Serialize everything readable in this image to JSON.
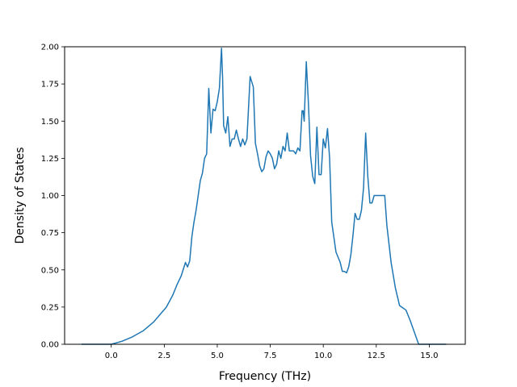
{
  "chart_data": {
    "type": "line",
    "title": "",
    "xlabel": "Frequency (THz)",
    "ylabel": "Density of States",
    "xlim": [
      -2.2,
      16.7
    ],
    "ylim": [
      0.0,
      2.0
    ],
    "xticks": [
      0.0,
      2.5,
      5.0,
      7.5,
      10.0,
      12.5,
      15.0
    ],
    "yticks": [
      0.0,
      0.25,
      0.5,
      0.75,
      1.0,
      1.25,
      1.5,
      1.75,
      2.0
    ],
    "xtick_labels": [
      "0.0",
      "2.5",
      "5.0",
      "7.5",
      "10.0",
      "12.5",
      "15.0"
    ],
    "ytick_labels": [
      "0.00",
      "0.25",
      "0.50",
      "0.75",
      "1.00",
      "1.25",
      "1.50",
      "1.75",
      "2.00"
    ],
    "grid": false,
    "series": [
      {
        "name": "",
        "color": "#1f77b4",
        "x": [
          -1.4,
          0.0,
          0.5,
          1.0,
          1.5,
          2.0,
          2.3,
          2.6,
          2.9,
          3.1,
          3.3,
          3.5,
          3.6,
          3.7,
          3.8,
          3.9,
          4.0,
          4.2,
          4.3,
          4.4,
          4.5,
          4.6,
          4.7,
          4.8,
          4.9,
          5.0,
          5.1,
          5.2,
          5.25,
          5.3,
          5.4,
          5.5,
          5.6,
          5.7,
          5.8,
          5.9,
          6.0,
          6.1,
          6.2,
          6.3,
          6.4,
          6.55,
          6.7,
          6.8,
          6.9,
          7.0,
          7.1,
          7.2,
          7.3,
          7.4,
          7.5,
          7.6,
          7.7,
          7.8,
          7.9,
          8.0,
          8.1,
          8.2,
          8.3,
          8.4,
          8.5,
          8.6,
          8.7,
          8.8,
          8.9,
          9.0,
          9.05,
          9.1,
          9.2,
          9.3,
          9.4,
          9.5,
          9.6,
          9.7,
          9.8,
          9.9,
          10.0,
          10.1,
          10.2,
          10.3,
          10.4,
          10.6,
          10.8,
          10.9,
          11.0,
          11.1,
          11.2,
          11.3,
          11.4,
          11.5,
          11.6,
          11.7,
          11.8,
          11.9,
          12.0,
          12.1,
          12.2,
          12.3,
          12.4,
          12.5,
          12.6,
          12.7,
          12.8,
          12.9,
          13.0,
          13.2,
          13.4,
          13.6,
          13.9,
          14.1,
          14.3,
          14.5,
          15.0,
          15.8
        ],
        "y": [
          0.0,
          0.0,
          0.02,
          0.05,
          0.09,
          0.15,
          0.2,
          0.25,
          0.33,
          0.4,
          0.46,
          0.55,
          0.52,
          0.56,
          0.72,
          0.82,
          0.9,
          1.1,
          1.15,
          1.25,
          1.28,
          1.72,
          1.42,
          1.58,
          1.57,
          1.63,
          1.72,
          1.99,
          1.8,
          1.47,
          1.42,
          1.53,
          1.33,
          1.38,
          1.38,
          1.44,
          1.38,
          1.33,
          1.38,
          1.34,
          1.38,
          1.8,
          1.73,
          1.35,
          1.28,
          1.2,
          1.16,
          1.18,
          1.26,
          1.3,
          1.28,
          1.25,
          1.18,
          1.21,
          1.3,
          1.25,
          1.33,
          1.3,
          1.42,
          1.3,
          1.3,
          1.3,
          1.28,
          1.32,
          1.3,
          1.57,
          1.57,
          1.5,
          1.9,
          1.62,
          1.27,
          1.13,
          1.08,
          1.46,
          1.14,
          1.14,
          1.38,
          1.32,
          1.45,
          1.25,
          0.82,
          0.62,
          0.55,
          0.49,
          0.49,
          0.48,
          0.52,
          0.6,
          0.73,
          0.88,
          0.84,
          0.84,
          0.9,
          1.05,
          1.42,
          1.13,
          0.95,
          0.95,
          1.0,
          1.0,
          1.0,
          1.0,
          1.0,
          1.0,
          0.8,
          0.55,
          0.38,
          0.26,
          0.23,
          0.16,
          0.08,
          0.0,
          0.0,
          0.0
        ]
      }
    ]
  }
}
